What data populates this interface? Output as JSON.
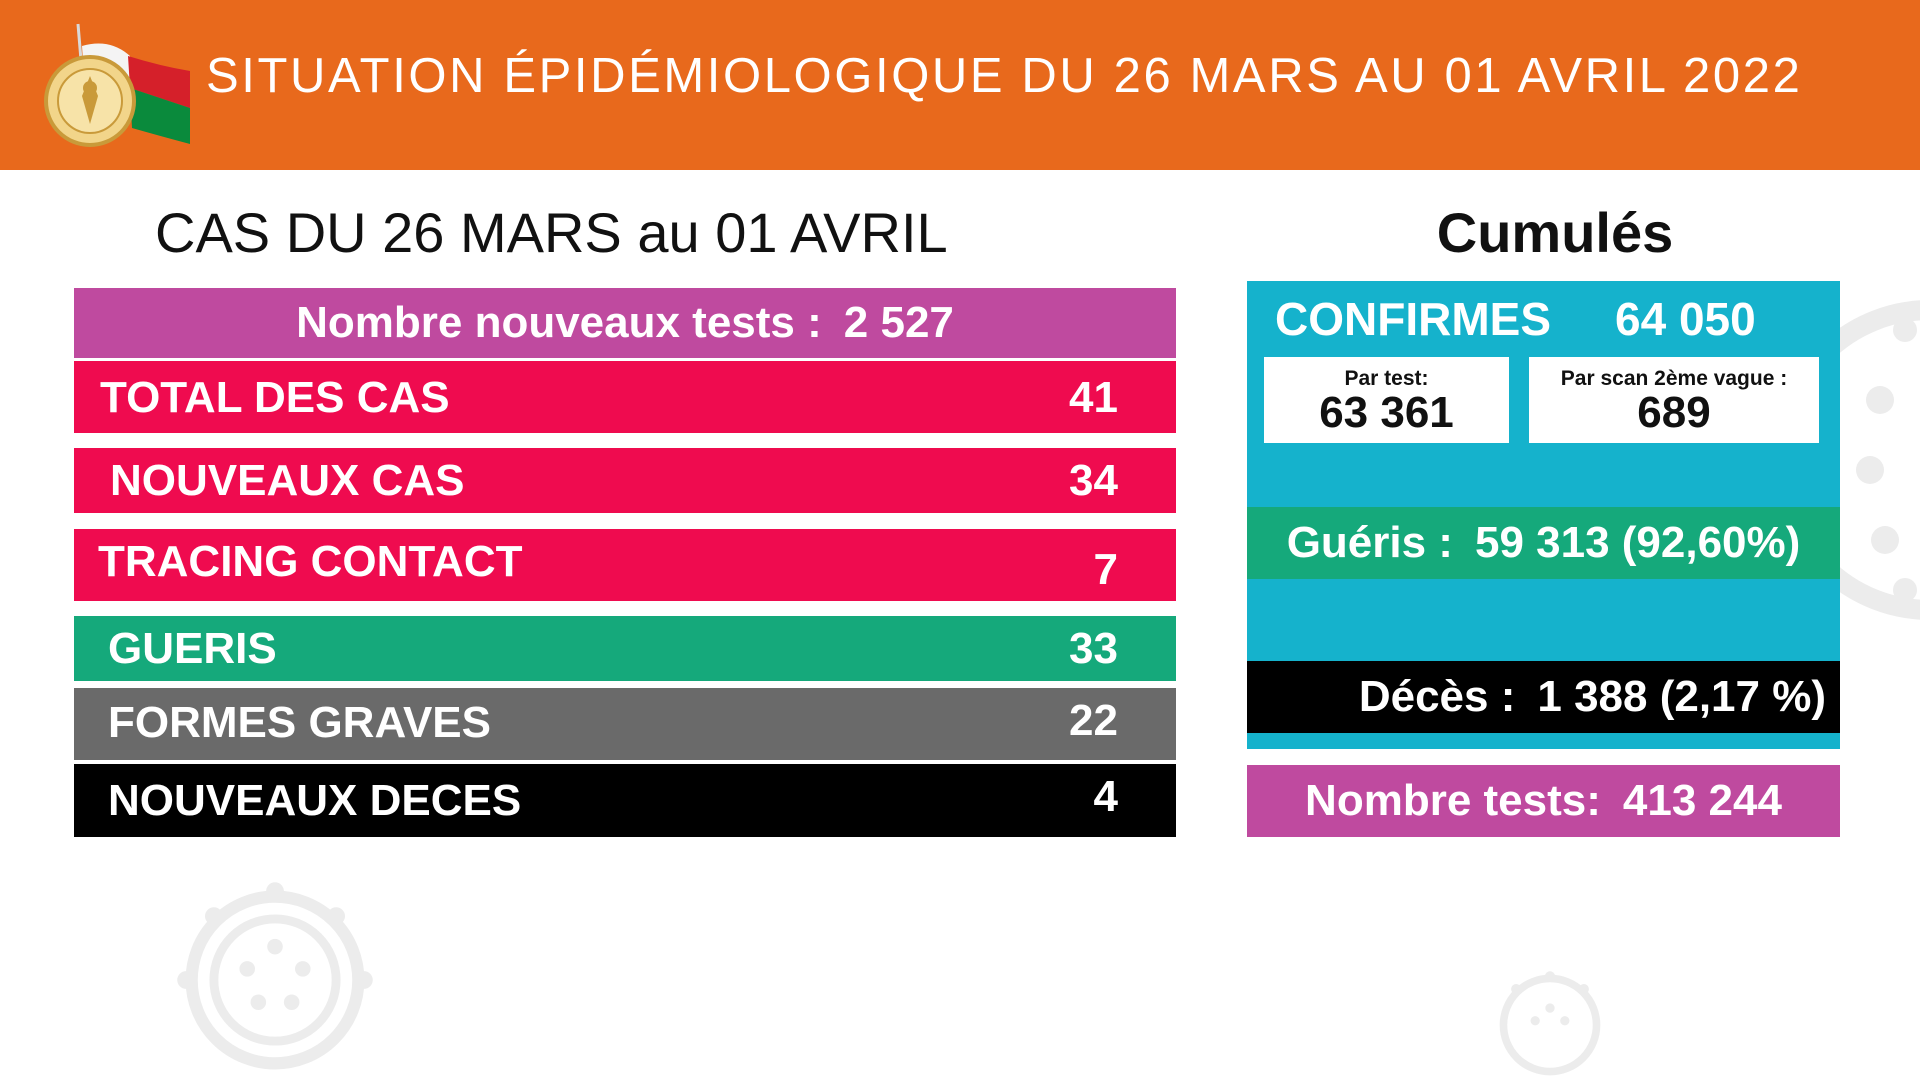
{
  "header": {
    "title": "SITUATION ÉPIDÉMIOLOGIQUE DU 26 MARS AU 01 AVRIL 2022",
    "emblem_icon": "madagascar-emblem-flag-icon",
    "colors": {
      "header_bg": "#e8691c"
    }
  },
  "weekly": {
    "title": "CAS DU 26 MARS au 01 AVRIL",
    "new_tests": {
      "label": "Nombre nouveaux tests :",
      "value": "2 527"
    },
    "rows": [
      {
        "label": "TOTAL DES CAS",
        "value": "41",
        "color": "#ef0b4f"
      },
      {
        "label": "NOUVEAUX CAS",
        "value": "34",
        "color": "#ef0b4f"
      },
      {
        "label": "TRACING CONTACT",
        "value": "7",
        "color": "#ef0b4f"
      },
      {
        "label": "GUERIS",
        "value": "33",
        "color": "#15a97b"
      },
      {
        "label": "FORMES GRAVES",
        "value": "22",
        "color": "#6a6a6a"
      },
      {
        "label": "NOUVEAUX DECES",
        "value": "4",
        "color": "#000000"
      }
    ]
  },
  "cumules": {
    "title": "Cumulés",
    "confirmes": {
      "label": "CONFIRMES",
      "value": "64 050",
      "par_test": {
        "label": "Par test:",
        "value": "63 361"
      },
      "par_scan": {
        "label": "Par scan 2ème vague :",
        "value": "689"
      }
    },
    "gueris": {
      "label": "Guéris :",
      "value": "59 313 (92,60%)"
    },
    "deces": {
      "label": "Décès :",
      "value": "1 388 (2,17 %)"
    },
    "nombre_tests": {
      "label": "Nombre tests:",
      "value": "413 244"
    },
    "colors": {
      "panel": "#15b2cc",
      "gueris": "#15a97b",
      "deces": "#000000",
      "tests": "#bf4a9f"
    }
  },
  "decorations": {
    "background_icon": "virus-icon"
  }
}
